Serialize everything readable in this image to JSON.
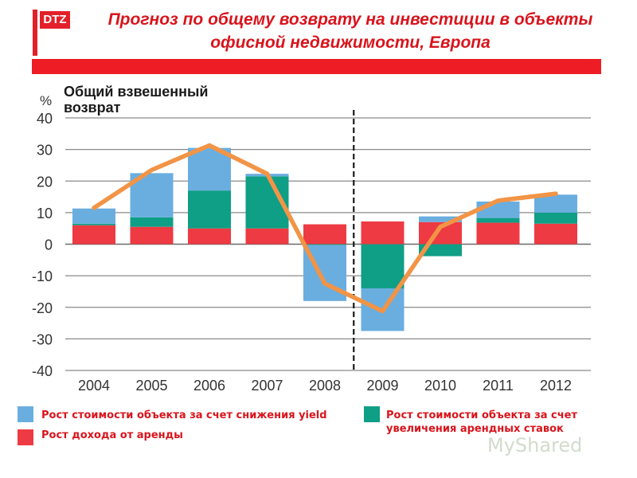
{
  "logo": {
    "text": "DTZ"
  },
  "title": "Прогноз  по общему возврату на инвестиции в объекты офисной недвижимости, Европа",
  "watermark": "MyShared",
  "colors": {
    "yield": "#6aaee0",
    "rent_growth": "#0f9e86",
    "income": "#ee3a43",
    "total": "#f29446",
    "title": "#d9141c"
  },
  "chart_data": {
    "type": "bar",
    "stacked": true,
    "title": "Общий взвешенный\nвозврат",
    "ylabel": "%",
    "ylim": [
      -40,
      40
    ],
    "yticks": [
      40,
      30,
      20,
      10,
      0,
      -10,
      -20,
      -30,
      -40
    ],
    "ytick_labels": [
      "40",
      "30",
      "20",
      "10",
      "0",
      "-10",
      "-20",
      "-30",
      "-40"
    ],
    "grid": true,
    "forecast_divider_after": "2008",
    "categories": [
      "2004",
      "2005",
      "2006",
      "2007",
      "2008",
      "2009",
      "2010",
      "2011",
      "2012"
    ],
    "series": [
      {
        "name": "Рост дохода от аренды",
        "color": "#ee3a43",
        "values": [
          6,
          5.5,
          5,
          5,
          6.3,
          7.2,
          7,
          6.8,
          6.5
        ]
      },
      {
        "name": "Рост стоимости объекта за счет увеличения арендных ставок",
        "color": "#0f9e86",
        "values": [
          0.5,
          3,
          12,
          16.5,
          -0.3,
          -14,
          -3.8,
          1.5,
          3.5
        ]
      },
      {
        "name": "Рост стоимости объекта за счет снижения yield",
        "color": "#6aaee0",
        "values": [
          4.8,
          14,
          13.5,
          0.8,
          -17.7,
          -13.5,
          1.8,
          5.2,
          5.7
        ]
      }
    ],
    "line": {
      "type": "line",
      "color": "#f29446",
      "values": [
        11.5,
        23.5,
        31.3,
        22.3,
        -12.5,
        -21.2,
        5.5,
        13.8,
        16
      ]
    },
    "legend": [
      {
        "label": "Рост стоимости объекта за счет снижения yield",
        "color": "#6aaee0"
      },
      {
        "label": "Рост стоимости объекта за счет увеличения арендных ставок",
        "color": "#0f9e86"
      },
      {
        "label": "Рост дохода от аренды",
        "color": "#ee3a43"
      }
    ],
    "legend_position": "bottom"
  }
}
